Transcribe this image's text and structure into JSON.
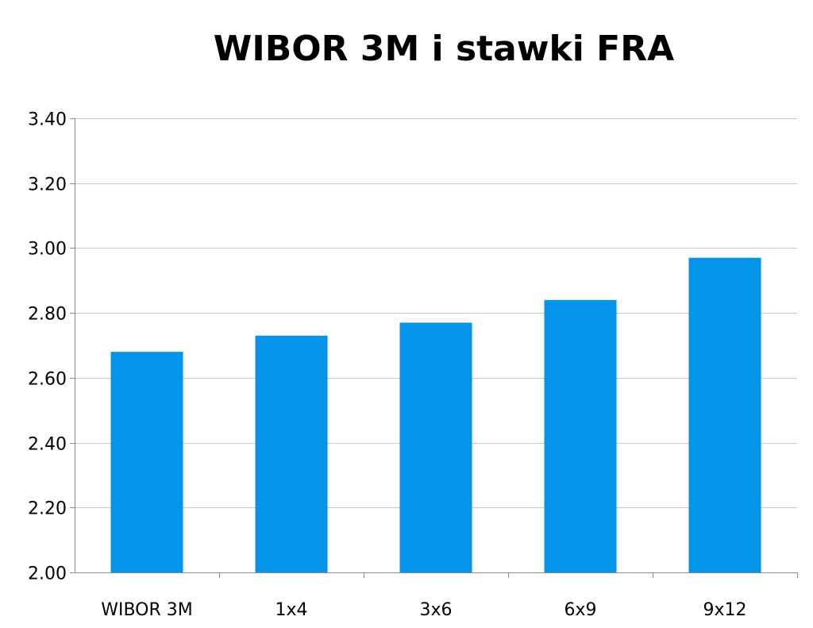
{
  "chart_data": {
    "type": "bar",
    "title": "WIBOR 3M i stawki FRA",
    "xlabel": "",
    "ylabel": "",
    "categories": [
      "WIBOR 3M",
      "1x4",
      "3x6",
      "6x9",
      "9x12"
    ],
    "values": [
      2.68,
      2.73,
      2.77,
      2.84,
      2.97
    ],
    "ylim": [
      2.0,
      3.4
    ],
    "yticks": [
      "2.00",
      "2.20",
      "2.40",
      "2.60",
      "2.80",
      "3.00",
      "3.20",
      "3.40"
    ],
    "grid": true,
    "legend": "none",
    "bar_color": "#0494EA",
    "grid_color": "#C8C8C8",
    "axis_color": "#8C8C8C"
  }
}
